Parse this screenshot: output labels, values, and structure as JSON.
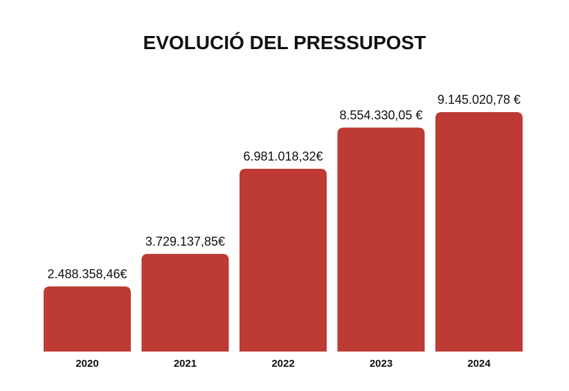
{
  "chart_data": {
    "type": "bar",
    "title": "EVOLUCIÓ DEL PRESSUPOST",
    "xlabel": "",
    "ylabel": "",
    "categories": [
      "2020",
      "2021",
      "2022",
      "2023",
      "2024"
    ],
    "values": [
      2488358.46,
      3729137.85,
      6981018.32,
      8554330.05,
      9145020.78
    ],
    "value_labels": [
      "2.488.358,46€",
      "3.729.137,85€",
      "6.981.018,32€",
      "8.554.330,05 €",
      "9.145.020,78 €"
    ],
    "ylim": [
      0,
      10000000
    ],
    "grid": false,
    "legend": "none",
    "bar_color": "#bd3a35"
  }
}
